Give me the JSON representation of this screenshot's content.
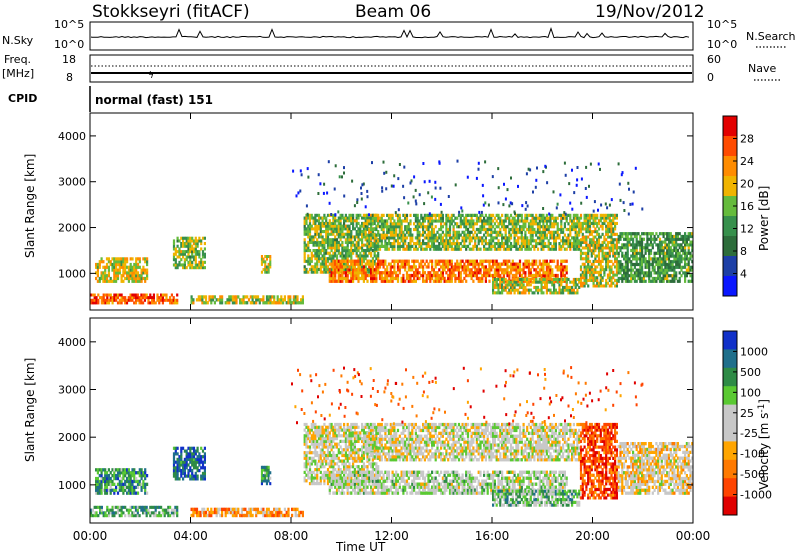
{
  "header": {
    "station": "Stokkseyri (fitACF)",
    "beam": "Beam 06",
    "date": "19/Nov/2012",
    "nsky_label": "N.Sky",
    "nsky_ticks": [
      "10^5",
      "10^0"
    ],
    "nsearch_label": "N.Search",
    "nsearch_ticks": [
      "10^5",
      "10^0"
    ],
    "freq_label": "Freq.",
    "freq_unit": "[MHz]",
    "freq_ticks": [
      "18",
      "8"
    ],
    "nave_label": "Nave",
    "nave_ticks": [
      "60",
      "0"
    ],
    "cpid_label": "CPID",
    "cpid_value": "normal (fast) 151"
  },
  "colors": {
    "power": [
      "#0a17ff",
      "#1d3fa6",
      "#2d6d3b",
      "#37904c",
      "#65bb3c",
      "#f0b400",
      "#ff8c00",
      "#ff4b00",
      "#e20000"
    ],
    "velocity": [
      "#e00000",
      "#ff4400",
      "#ff7a00",
      "#ffa500",
      "#c8c8c8",
      "#c8c8c8",
      "#5ac932",
      "#2e8b46",
      "#1f6f8b",
      "#1030c8"
    ]
  },
  "chart_data": [
    {
      "type": "heatmap",
      "name": "power",
      "xlabel": "",
      "ylabel": "Slant Range [km]",
      "xlim": [
        "00:00",
        "24:00"
      ],
      "ylim": [
        200,
        4500
      ],
      "yticks": [
        1000,
        2000,
        3000,
        4000
      ],
      "xticks": [
        "00:00",
        "04:00",
        "08:00",
        "12:00",
        "16:00",
        "20:00",
        "00:00"
      ],
      "colorbar_label": "Power [dB]",
      "colorbar_ticks": [
        "28",
        "24",
        "20",
        "16",
        "12",
        "8",
        "4"
      ],
      "bands": [
        {
          "t0": 0.0,
          "t1": 3.5,
          "r0": 330,
          "r1": 560,
          "level": 0.8
        },
        {
          "t0": 0.2,
          "t1": 2.3,
          "r0": 800,
          "r1": 1350,
          "level": 0.6
        },
        {
          "t0": 3.3,
          "t1": 4.6,
          "r0": 1100,
          "r1": 1800,
          "level": 0.5
        },
        {
          "t0": 4.0,
          "t1": 8.5,
          "r0": 330,
          "r1": 520,
          "level": 0.55
        },
        {
          "t0": 6.8,
          "t1": 7.2,
          "r0": 1000,
          "r1": 1400,
          "level": 0.6
        },
        {
          "t0": 8.5,
          "t1": 11.5,
          "r0": 1000,
          "r1": 2300,
          "level": 0.5
        },
        {
          "t0": 9.5,
          "t1": 19.0,
          "r0": 800,
          "r1": 1300,
          "level": 0.75
        },
        {
          "t0": 11.0,
          "t1": 19.5,
          "r0": 1500,
          "r1": 2300,
          "level": 0.5
        },
        {
          "t0": 16.0,
          "t1": 19.5,
          "r0": 550,
          "r1": 900,
          "level": 0.55
        },
        {
          "t0": 19.5,
          "t1": 21.0,
          "r0": 700,
          "r1": 2300,
          "level": 0.55
        },
        {
          "t0": 21.0,
          "t1": 24.0,
          "r0": 800,
          "r1": 1900,
          "level": 0.4
        }
      ]
    },
    {
      "type": "heatmap",
      "name": "velocity",
      "xlabel": "Time UT",
      "ylabel": "Slant Range [km]",
      "xlim": [
        "00:00",
        "24:00"
      ],
      "ylim": [
        200,
        4500
      ],
      "yticks": [
        1000,
        2000,
        3000,
        4000
      ],
      "xticks": [
        "00:00",
        "04:00",
        "08:00",
        "12:00",
        "16:00",
        "20:00",
        "00:00"
      ],
      "colorbar_label": "Velocity [m s^-1]",
      "colorbar_ticks": [
        "1000",
        "500",
        "100",
        "25",
        "-25",
        "-100",
        "-500",
        "-1000"
      ],
      "bands": [
        {
          "t0": 0.0,
          "t1": 3.5,
          "r0": 330,
          "r1": 560,
          "level": 0.7
        },
        {
          "t0": 0.2,
          "t1": 2.3,
          "r0": 800,
          "r1": 1350,
          "level": 0.75
        },
        {
          "t0": 3.3,
          "t1": 4.6,
          "r0": 1100,
          "r1": 1800,
          "level": 0.85
        },
        {
          "t0": 4.0,
          "t1": 8.5,
          "r0": 330,
          "r1": 520,
          "level": 0.3
        },
        {
          "t0": 6.8,
          "t1": 7.2,
          "r0": 1000,
          "r1": 1400,
          "level": 0.75
        },
        {
          "t0": 8.5,
          "t1": 11.5,
          "r0": 1000,
          "r1": 2300,
          "level": 0.5
        },
        {
          "t0": 9.5,
          "t1": 19.0,
          "r0": 800,
          "r1": 1300,
          "level": 0.55
        },
        {
          "t0": 11.0,
          "t1": 19.5,
          "r0": 1500,
          "r1": 2300,
          "level": 0.5
        },
        {
          "t0": 16.0,
          "t1": 19.5,
          "r0": 550,
          "r1": 900,
          "level": 0.65
        },
        {
          "t0": 19.5,
          "t1": 21.0,
          "r0": 700,
          "r1": 2300,
          "level": 0.15
        },
        {
          "t0": 21.0,
          "t1": 24.0,
          "r0": 800,
          "r1": 1900,
          "level": 0.45
        }
      ]
    }
  ]
}
